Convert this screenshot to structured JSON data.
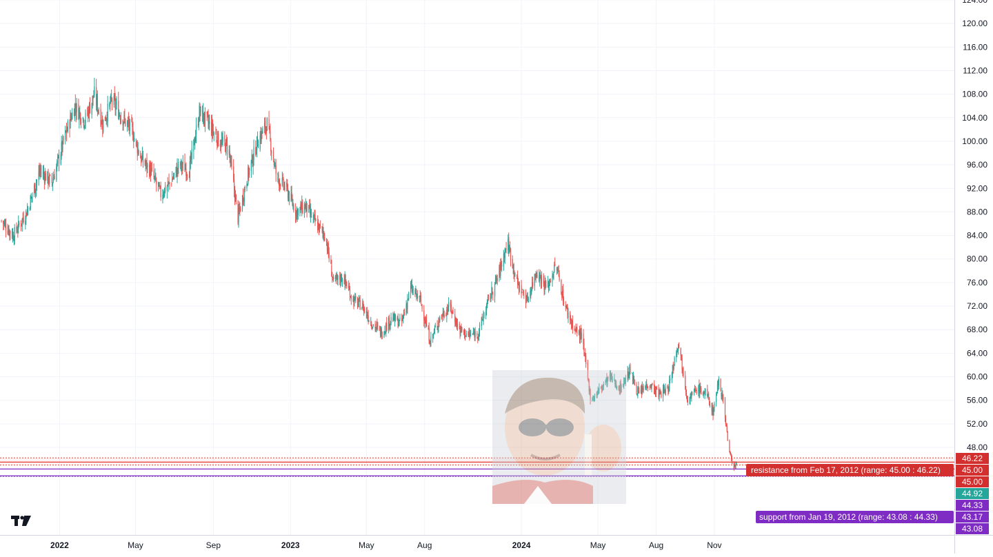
{
  "chart_data": {
    "type": "candlestick",
    "ylim": [
      40.0,
      124.0
    ],
    "y_ticks": [
      "48.00",
      "52.00",
      "56.00",
      "60.00",
      "64.00",
      "68.00",
      "72.00",
      "76.00",
      "80.00",
      "84.00",
      "88.00",
      "92.00",
      "96.00",
      "100.00",
      "104.00",
      "108.00",
      "112.00",
      "116.00",
      "120.00",
      "124.00"
    ],
    "x_ticks": [
      {
        "label": "2022",
        "date": "2022-01-01",
        "bold": true
      },
      {
        "label": "May",
        "date": "2022-05-01",
        "bold": false
      },
      {
        "label": "Sep",
        "date": "2022-09-01",
        "bold": false
      },
      {
        "label": "2023",
        "date": "2023-01-01",
        "bold": true
      },
      {
        "label": "May",
        "date": "2023-05-01",
        "bold": false
      },
      {
        "label": "Aug",
        "date": "2023-08-01",
        "bold": false
      },
      {
        "label": "2024",
        "date": "2024-01-01",
        "bold": true
      },
      {
        "label": "May",
        "date": "2024-05-01",
        "bold": false
      },
      {
        "label": "Aug",
        "date": "2024-08-01",
        "bold": false
      },
      {
        "label": "Nov",
        "date": "2024-11-01",
        "bold": false
      }
    ],
    "price_path": [
      [
        "2021-10-01",
        86.5
      ],
      [
        "2021-10-20",
        84.0
      ],
      [
        "2021-11-10",
        88.0
      ],
      [
        "2021-12-01",
        95.0
      ],
      [
        "2021-12-20",
        93.0
      ],
      [
        "2022-01-10",
        101.0
      ],
      [
        "2022-01-25",
        106.0
      ],
      [
        "2022-02-10",
        103.5
      ],
      [
        "2022-02-25",
        108.0
      ],
      [
        "2022-03-10",
        103.0
      ],
      [
        "2022-03-25",
        107.0
      ],
      [
        "2022-04-10",
        104.0
      ],
      [
        "2022-04-25",
        102.0
      ],
      [
        "2022-05-10",
        97.0
      ],
      [
        "2022-05-25",
        95.0
      ],
      [
        "2022-06-10",
        91.0
      ],
      [
        "2022-06-25",
        93.0
      ],
      [
        "2022-07-10",
        96.0
      ],
      [
        "2022-07-25",
        95.0
      ],
      [
        "2022-08-10",
        105.0
      ],
      [
        "2022-08-25",
        103.0
      ],
      [
        "2022-09-10",
        100.0
      ],
      [
        "2022-09-25",
        99.0
      ],
      [
        "2022-10-10",
        87.0
      ],
      [
        "2022-10-25",
        94.0
      ],
      [
        "2022-11-10",
        100.0
      ],
      [
        "2022-11-25",
        103.0
      ],
      [
        "2022-12-10",
        94.0
      ],
      [
        "2022-12-25",
        92.0
      ],
      [
        "2023-01-10",
        88.0
      ],
      [
        "2023-01-25",
        89.0
      ],
      [
        "2023-02-10",
        86.0
      ],
      [
        "2023-02-25",
        84.0
      ],
      [
        "2023-03-10",
        76.0
      ],
      [
        "2023-03-25",
        77.0
      ],
      [
        "2023-04-10",
        73.0
      ],
      [
        "2023-04-25",
        72.0
      ],
      [
        "2023-05-10",
        69.0
      ],
      [
        "2023-05-25",
        67.5
      ],
      [
        "2023-06-10",
        70.0
      ],
      [
        "2023-06-25",
        69.0
      ],
      [
        "2023-07-10",
        75.0
      ],
      [
        "2023-07-25",
        73.0
      ],
      [
        "2023-08-10",
        66.0
      ],
      [
        "2023-08-25",
        70.0
      ],
      [
        "2023-09-10",
        72.0
      ],
      [
        "2023-09-25",
        68.0
      ],
      [
        "2023-10-10",
        67.0
      ],
      [
        "2023-10-25",
        67.5
      ],
      [
        "2023-11-10",
        73.0
      ],
      [
        "2023-11-25",
        77.0
      ],
      [
        "2023-12-10",
        83.0
      ],
      [
        "2023-12-25",
        76.0
      ],
      [
        "2024-01-10",
        73.0
      ],
      [
        "2024-01-25",
        78.0
      ],
      [
        "2024-02-10",
        75.0
      ],
      [
        "2024-02-25",
        79.0
      ],
      [
        "2024-03-10",
        72.0
      ],
      [
        "2024-03-25",
        68.0
      ],
      [
        "2024-04-05",
        67.0
      ],
      [
        "2024-04-20",
        56.0
      ],
      [
        "2024-05-05",
        58.0
      ],
      [
        "2024-05-20",
        60.0
      ],
      [
        "2024-06-05",
        58.0
      ],
      [
        "2024-06-20",
        61.0
      ],
      [
        "2024-07-05",
        57.0
      ],
      [
        "2024-07-20",
        59.0
      ],
      [
        "2024-08-05",
        57.0
      ],
      [
        "2024-08-20",
        58.0
      ],
      [
        "2024-09-05",
        66.0
      ],
      [
        "2024-09-20",
        56.0
      ],
      [
        "2024-10-05",
        58.0
      ],
      [
        "2024-10-20",
        57.0
      ],
      [
        "2024-10-30",
        54.0
      ],
      [
        "2024-11-08",
        59.5
      ],
      [
        "2024-11-15",
        56.0
      ],
      [
        "2024-11-25",
        47.0
      ],
      [
        "2024-12-02",
        44.8
      ],
      [
        "2024-12-06",
        44.92
      ]
    ],
    "price_lines": [
      {
        "value": "46.22",
        "label": "46.22",
        "color": "#e53935",
        "dashed": true
      },
      {
        "value": "45.50",
        "label": "",
        "color": "#e53935",
        "dashed": false
      },
      {
        "value": "45.00",
        "label": "45.00",
        "color": "#e53935",
        "dashed": true
      },
      {
        "value": "44.33",
        "label": "44.33",
        "color": "#7e2cc4",
        "dashed": false
      },
      {
        "value": "43.17",
        "label": "43.17",
        "color": "#7e2cc4",
        "dashed": false
      },
      {
        "value": "43.08",
        "label": "43.08",
        "color": "#7e2cc4",
        "dashed": true
      }
    ],
    "last_price": "44.92",
    "colors": {
      "up": "#26a69a",
      "down": "#ef5350",
      "grid": "#f0f3fa",
      "axis_text": "#131722",
      "resistance": "#e53935",
      "support": "#7e2cc4"
    }
  },
  "annotations": {
    "resistance_label": "resistance from Feb 17, 2012 (range: 45.00 : 46.22)",
    "support_label": "support from Jan 19, 2012 (range: 43.08 : 44.33)"
  },
  "price_tags": {
    "r_top": "46.22",
    "r_mid": "45.00",
    "r_bot": "45.00",
    "last": "44.92",
    "s_top": "44.33",
    "s_mid": "43.17",
    "s_bot": "43.08"
  },
  "logo": {
    "name": "tradingview-logo"
  },
  "overlay_image": {
    "name": "person-photo",
    "description": "man wearing sunglasses"
  }
}
